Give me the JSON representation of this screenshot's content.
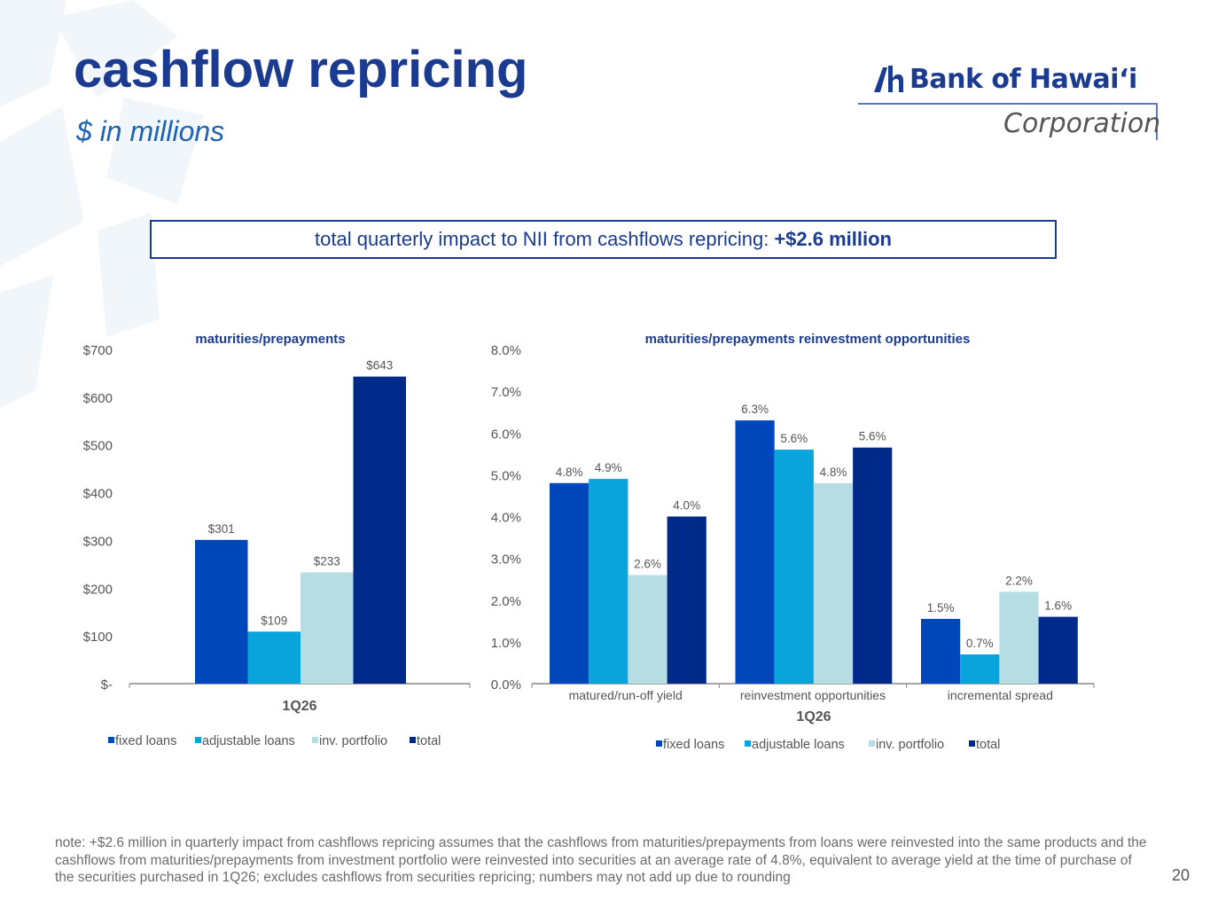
{
  "slide": {
    "title": "cashflow repricing",
    "subtitle": "$ in millions",
    "logo": {
      "name": "Bank of Hawaiʻi",
      "sub": "Corporation"
    },
    "impact": {
      "text": "total quarterly impact to NII from cashflows repricing:",
      "value": "+$2.6 million"
    },
    "note": "note: +$2.6 million in quarterly impact from cashflows repricing assumes that the cashflows from maturities/prepayments from loans were reinvested into the same products and the cashflows from maturities/prepayments from investment portfolio were reinvested into securities at an average rate of 4.8%, equivalent to average yield at the time of purchase of the securities purchased in 1Q26; excludes cashflows from securities repricing; numbers may not add up due to rounding",
    "page_number": "20"
  },
  "colors": {
    "title": "#1a3b8f",
    "subtitle": "#1e62b3",
    "fixed_loans": "#0047bb",
    "adjustable_loans": "#0aa4dd",
    "inv_portfolio": "#b6dde3",
    "total": "#002a8a"
  },
  "chart_data": [
    {
      "type": "bar",
      "title": "maturities/prepayments",
      "categories": [
        "1Q26"
      ],
      "xlabel": "1Q26",
      "ylim": [
        0,
        700
      ],
      "yticks": [
        0,
        100,
        200,
        300,
        400,
        500,
        600,
        700
      ],
      "ytick_labels": [
        "$-",
        "$100",
        "$200",
        "$300",
        "$400",
        "$500",
        "$600",
        "$700"
      ],
      "series": [
        {
          "name": "fixed loans",
          "values": [
            301
          ],
          "labels": [
            "$301"
          ]
        },
        {
          "name": "adjustable loans",
          "values": [
            109
          ],
          "labels": [
            "$109"
          ]
        },
        {
          "name": "inv. portfolio",
          "values": [
            233
          ],
          "labels": [
            "$233"
          ]
        },
        {
          "name": "total",
          "values": [
            643
          ],
          "labels": [
            "$643"
          ]
        }
      ],
      "legend": "bottom"
    },
    {
      "type": "bar",
      "title": "maturities/prepayments reinvestment opportunities",
      "categories": [
        "matured/run-off yield",
        "reinvestment opportunities",
        "incremental spread"
      ],
      "xlabel": "1Q26",
      "ylim": [
        0,
        8
      ],
      "yticks": [
        0,
        1,
        2,
        3,
        4,
        5,
        6,
        7,
        8
      ],
      "ytick_labels": [
        "0.0%",
        "1.0%",
        "2.0%",
        "3.0%",
        "4.0%",
        "5.0%",
        "6.0%",
        "7.0%",
        "8.0%"
      ],
      "series": [
        {
          "name": "fixed loans",
          "values": [
            4.8,
            6.3,
            1.55
          ],
          "labels": [
            "4.8%",
            "6.3%",
            "1.5%"
          ]
        },
        {
          "name": "adjustable loans",
          "values": [
            4.9,
            5.6,
            0.7
          ],
          "labels": [
            "4.9%",
            "5.6%",
            "0.7%"
          ]
        },
        {
          "name": "inv. portfolio",
          "values": [
            2.6,
            4.8,
            2.2
          ],
          "labels": [
            "2.6%",
            "4.8%",
            "2.2%"
          ]
        },
        {
          "name": "total",
          "values": [
            4.0,
            5.65,
            1.6
          ],
          "labels": [
            "4.0%",
            "5.6%",
            "1.6%"
          ]
        }
      ],
      "legend": "bottom"
    }
  ]
}
